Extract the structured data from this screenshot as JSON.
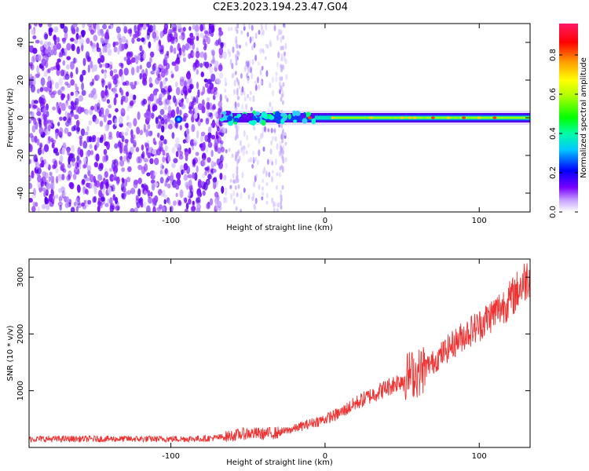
{
  "title": "C2E3.2023.194.23.47.G04",
  "chart_data": [
    {
      "type": "heatmap",
      "xlabel": "Height of straight line (km)",
      "ylabel": "Frequency (Hz)",
      "xlim": [
        -192,
        133
      ],
      "ylim": [
        -50,
        50
      ],
      "xticks": [
        -100,
        0,
        100
      ],
      "xtick_labels": [
        "-100",
        "0",
        "100"
      ],
      "yticks": [
        -40,
        -20,
        0,
        20,
        40
      ],
      "ytick_labels": [
        "-40",
        "-20",
        "0",
        "20",
        "40"
      ],
      "colorbar": {
        "label": "Normalized spectral amplitude",
        "range": [
          0,
          0.96
        ],
        "ticks": [
          0.0,
          0.2,
          0.4,
          0.6,
          0.8
        ],
        "tick_labels": [
          "0.0",
          "0.2",
          "0.4",
          "0.6",
          "0.8"
        ],
        "colormap": [
          "#ffffff",
          "#7a00ff",
          "#0000ff",
          "#00e5ff",
          "#00ff00",
          "#ffff00",
          "#ff9900",
          "#ff0000",
          "#ff1a66"
        ]
      },
      "features": {
        "noise_region_x": [
          -192,
          -65
        ],
        "sparse_region_x": [
          -65,
          -25
        ],
        "signal_band_center_hz": 0,
        "signal_band_halfwidth_hz": 3,
        "signal_start_x": -67
      },
      "grid": false
    },
    {
      "type": "line",
      "xlabel": "Height of straight line (km)",
      "ylabel": "SNR (10 * v/v)",
      "xlim": [
        -192,
        133
      ],
      "ylim": [
        0,
        3320
      ],
      "xticks": [
        -100,
        0,
        100
      ],
      "xtick_labels": [
        "-100",
        "0",
        "100"
      ],
      "yticks": [
        1000,
        2000,
        3000
      ],
      "ytick_labels": [
        "1000",
        "2000",
        "3000"
      ],
      "color": "#ee3333",
      "grid": false,
      "series": [
        {
          "x": [
            -192,
            -150,
            -100,
            -80,
            -70,
            -60,
            -50,
            -40,
            -30,
            -20,
            -10,
            0,
            10,
            20,
            30,
            40,
            50,
            55,
            60,
            65,
            70,
            80,
            90,
            100,
            110,
            120,
            130,
            133
          ],
          "values": [
            150,
            150,
            150,
            155,
            170,
            210,
            250,
            240,
            260,
            330,
            420,
            500,
            610,
            780,
            920,
            1050,
            1200,
            1300,
            1300,
            1420,
            1500,
            1750,
            1980,
            2150,
            2380,
            2600,
            2950,
            3050
          ]
        }
      ]
    }
  ]
}
